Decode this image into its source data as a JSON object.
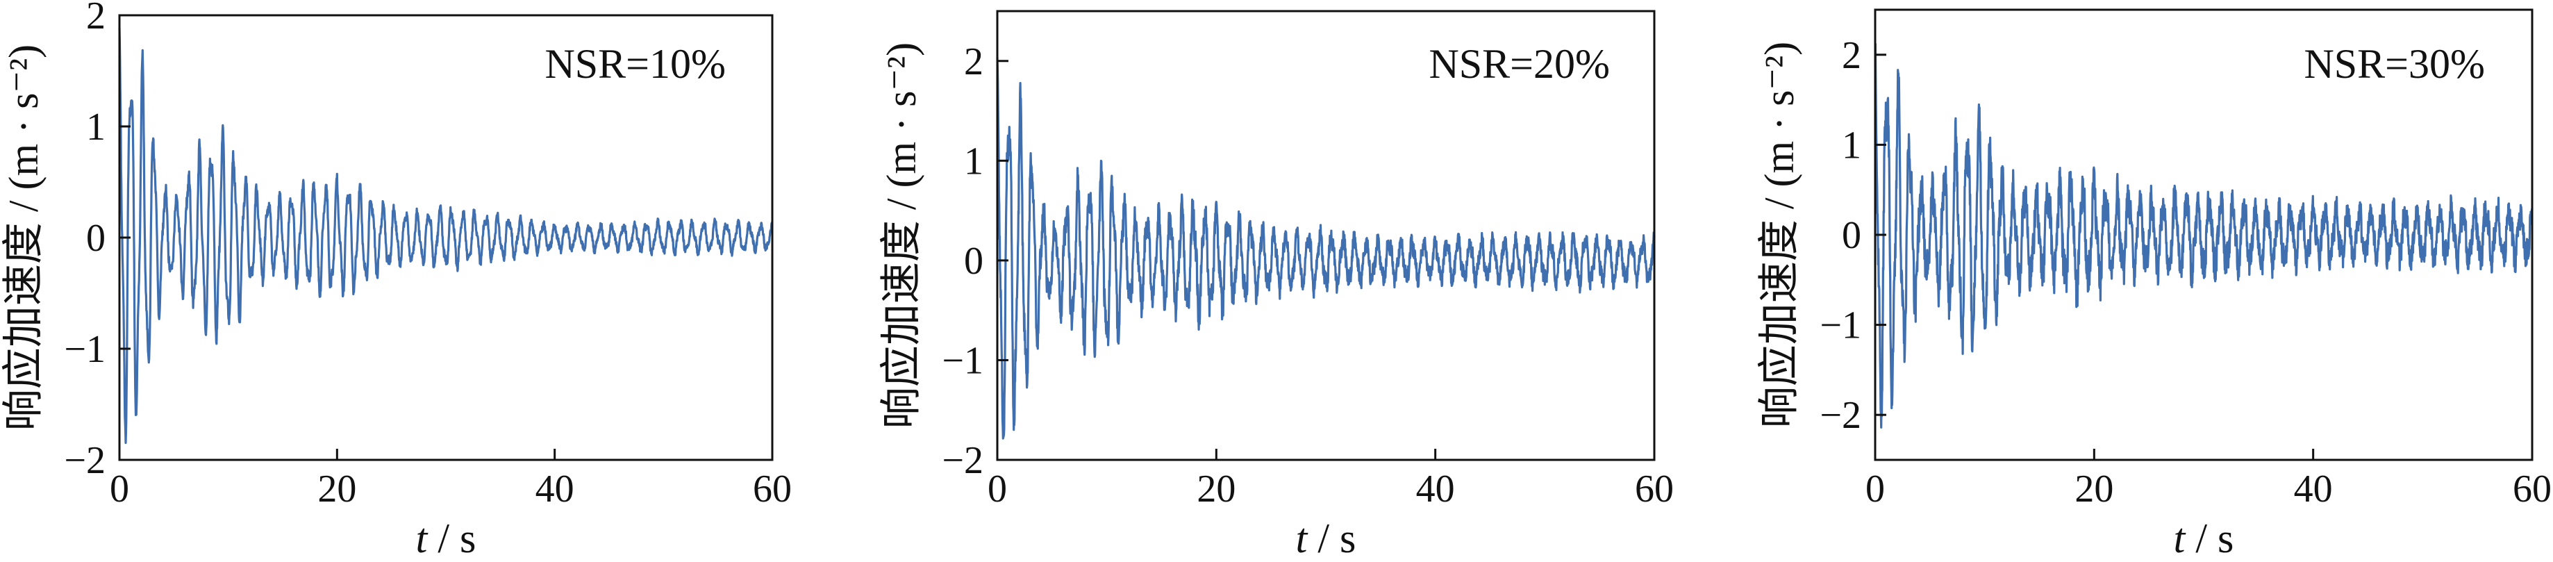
{
  "chart_data": [
    {
      "type": "line",
      "annotation": "NSR=10%",
      "xlabel_italic": "t",
      "xlabel_unit": " / s",
      "ylabel": "响应加速度 / (m · s⁻²)",
      "xlim": [
        0,
        60
      ],
      "ylim": [
        -2,
        2
      ],
      "xticks": [
        "0",
        "20",
        "40",
        "60"
      ],
      "yticks": [
        "−2",
        "−1",
        "0",
        "1",
        "2"
      ],
      "grid": false,
      "series": [
        {
          "color": "#3f6fae",
          "description_points": {
            "x": [
              0,
              1,
              2,
              3,
              4,
              5,
              6,
              8,
              10,
              12,
              14,
              16,
              18,
              20,
              22,
              24,
              26,
              28,
              30,
              32,
              34,
              36,
              40,
              45,
              50,
              55,
              60
            ],
            "envelope": [
              2.0,
              1.8,
              1.7,
              1.2,
              0.5,
              0.35,
              0.6,
              0.95,
              1.0,
              0.5,
              0.35,
              0.45,
              0.55,
              0.55,
              0.5,
              0.35,
              0.25,
              0.25,
              0.3,
              0.25,
              0.22,
              0.2,
              0.12,
              0.12,
              0.15,
              0.15,
              0.12
            ]
          }
        }
      ]
    },
    {
      "type": "line",
      "annotation": "NSR=20%",
      "xlabel_italic": "t",
      "xlabel_unit": " / s",
      "ylabel": "响应加速度 / (m · s⁻²)",
      "xlim": [
        0,
        60
      ],
      "ylim": [
        -2,
        2.5
      ],
      "xticks": [
        "0",
        "20",
        "40",
        "60"
      ],
      "yticks": [
        "−2",
        "−1",
        "0",
        "1",
        "2"
      ],
      "grid": false,
      "series": [
        {
          "color": "#3f6fae",
          "description_points": {
            "x": [
              0,
              1,
              2,
              3,
              4,
              5,
              6,
              8,
              10,
              12,
              14,
              16,
              18,
              20,
              22,
              24,
              26,
              28,
              30,
              32,
              34,
              36,
              40,
              45,
              50,
              55,
              60
            ],
            "envelope": [
              2.2,
              1.8,
              1.7,
              1.3,
              0.6,
              0.4,
              0.55,
              0.95,
              1.0,
              0.55,
              0.45,
              0.55,
              0.6,
              0.55,
              0.45,
              0.35,
              0.3,
              0.3,
              0.3,
              0.25,
              0.22,
              0.22,
              0.2,
              0.22,
              0.25,
              0.25,
              0.22
            ]
          }
        }
      ]
    },
    {
      "type": "line",
      "annotation": "NSR=30%",
      "xlabel_italic": "t",
      "xlabel_unit": " / s",
      "ylabel": "响应加速度 / (m · s⁻²)",
      "xlim": [
        0,
        60
      ],
      "ylim": [
        -2.5,
        2.5
      ],
      "xticks": [
        "0",
        "20",
        "40",
        "60"
      ],
      "yticks": [
        "−2",
        "−1",
        "0",
        "1",
        "2"
      ],
      "grid": false,
      "series": [
        {
          "color": "#3f6fae",
          "description_points": {
            "x": [
              0,
              1,
              2,
              3,
              4,
              5,
              6,
              8,
              10,
              12,
              14,
              16,
              18,
              20,
              22,
              24,
              26,
              28,
              30,
              32,
              34,
              36,
              40,
              45,
              50,
              55,
              60
            ],
            "envelope": [
              2.3,
              2.0,
              1.9,
              1.3,
              0.6,
              0.5,
              0.7,
              1.35,
              1.3,
              0.6,
              0.5,
              0.55,
              0.7,
              0.6,
              0.5,
              0.45,
              0.4,
              0.45,
              0.45,
              0.4,
              0.35,
              0.35,
              0.3,
              0.3,
              0.3,
              0.32,
              0.3
            ]
          }
        }
      ]
    }
  ]
}
